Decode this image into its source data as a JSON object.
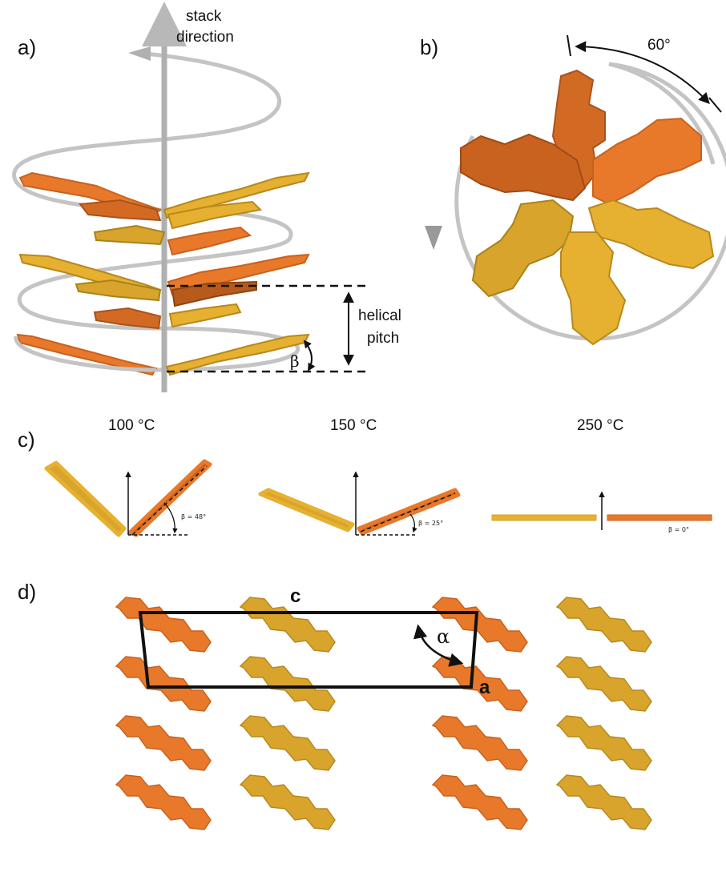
{
  "colors": {
    "orange": "#e8792a",
    "orange_dark": "#c9611f",
    "gold": "#d8a42c",
    "gold_dark": "#b8881e",
    "helix": "#c8c8c8",
    "axis": "#b0b0b0"
  },
  "panel_a": {
    "label": "a)",
    "axis_label_line1": "stack",
    "axis_label_line2": "direction",
    "pitch_label_line1": "helical",
    "pitch_label_line2": "pitch",
    "angle_label": "β"
  },
  "panel_b": {
    "label": "b)",
    "angle_label": "60°"
  },
  "panel_c": {
    "label": "c)",
    "temps": [
      {
        "label": "100 °C",
        "beta": "β = 48°"
      },
      {
        "label": "150 °C",
        "beta": "β = 25°"
      },
      {
        "label": "250 °C",
        "beta": "β = 0°"
      }
    ]
  },
  "panel_d": {
    "label": "d)",
    "axis_c": "c",
    "axis_a": "a",
    "angle_label": "α"
  }
}
